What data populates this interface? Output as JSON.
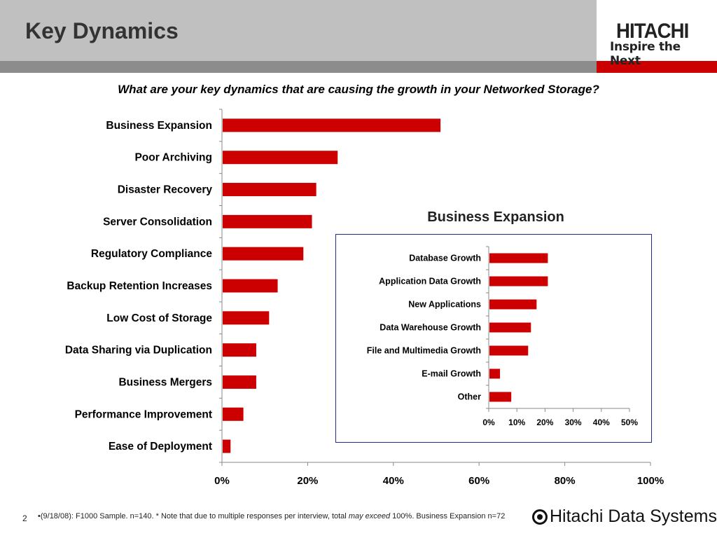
{
  "slide": {
    "title": "Key Dynamics",
    "page_number": "2",
    "logo_name": "HITACHI",
    "logo_tagline": "Inspire the Next",
    "footer_logo": "Hitachi Data Systems",
    "footer_note_prefix": "•(9/18/08): F1000 Sample. n=140. * Note that due to multiple responses per interview, total ",
    "footer_note_emphasis": "may exceed",
    "footer_note_suffix": " 100%. Business Expansion n=72",
    "colors": {
      "bar": "#cc0000",
      "title_band": "#c0c0c0",
      "accent_red": "#cc0000",
      "inset_border": "#1f2d8f"
    }
  },
  "chart_data": [
    {
      "type": "bar",
      "orientation": "horizontal",
      "title": "What are your key dynamics that are causing the growth in your Networked Storage?",
      "categories": [
        "Business Expansion",
        "Poor Archiving",
        "Disaster Recovery",
        "Server Consolidation",
        "Regulatory Compliance",
        "Backup Retention Increases",
        "Low Cost of Storage",
        "Data Sharing via Duplication",
        "Business Mergers",
        "Performance Improvement",
        "Ease of Deployment"
      ],
      "values": [
        51,
        27,
        22,
        21,
        19,
        13,
        11,
        8,
        8,
        5,
        2
      ],
      "xlim": [
        0,
        100
      ],
      "x_ticks": [
        "0%",
        "20%",
        "40%",
        "60%",
        "80%",
        "100%"
      ],
      "tick_values": [
        0,
        20,
        40,
        60,
        80,
        100
      ],
      "grid": false,
      "legend": "none"
    },
    {
      "type": "bar",
      "orientation": "horizontal",
      "title": "Business Expansion",
      "categories": [
        "Database Growth",
        "Application Data Growth",
        "New Applications",
        "Data Warehouse Growth",
        "File and Multimedia Growth",
        "E-mail Growth",
        "Other"
      ],
      "values": [
        21,
        21,
        17,
        15,
        14,
        4,
        8
      ],
      "xlim": [
        0,
        50
      ],
      "x_ticks": [
        "0%",
        "10%",
        "20%",
        "30%",
        "40%",
        "50%"
      ],
      "tick_values": [
        0,
        10,
        20,
        30,
        40,
        50
      ],
      "grid": false,
      "legend": "none"
    }
  ]
}
